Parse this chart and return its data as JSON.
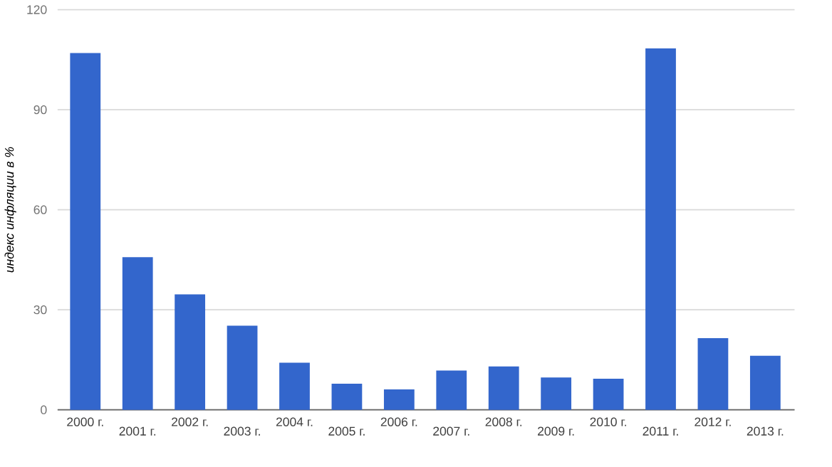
{
  "chart_data": {
    "type": "bar",
    "ylabel": "индекс инфляции в %",
    "categories": [
      "2000 г.",
      "2001 г.",
      "2002 г.",
      "2003 г.",
      "2004 г.",
      "2005 г.",
      "2006 г.",
      "2007 г.",
      "2008 г.",
      "2009 г.",
      "2010 г.",
      "2011 г.",
      "2012 г.",
      "2013 г."
    ],
    "values": [
      107.0,
      45.8,
      34.6,
      25.2,
      14.1,
      7.8,
      6.1,
      11.8,
      13.0,
      9.7,
      9.3,
      108.4,
      21.5,
      16.2
    ],
    "color": "#3366cc",
    "ylim": [
      0,
      120
    ],
    "yticks": [
      0,
      30,
      60,
      90,
      120
    ],
    "grid": "y"
  }
}
